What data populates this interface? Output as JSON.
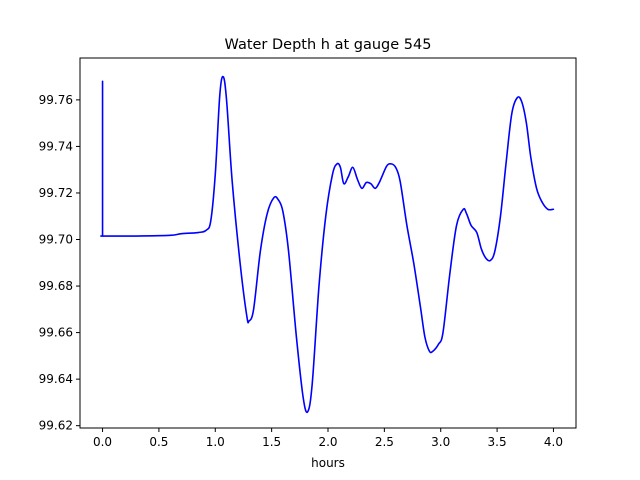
{
  "chart_data": {
    "type": "line",
    "title": "Water Depth h at gauge 545",
    "xlabel": "hours",
    "ylabel": "",
    "xlim": [
      -0.2,
      4.2
    ],
    "ylim": [
      99.619,
      99.778
    ],
    "xticks": [
      0.0,
      0.5,
      1.0,
      1.5,
      2.0,
      2.5,
      3.0,
      3.5,
      4.0
    ],
    "xtick_labels": [
      "0.0",
      "0.5",
      "1.0",
      "1.5",
      "2.0",
      "2.5",
      "3.0",
      "3.5",
      "4.0"
    ],
    "yticks": [
      99.62,
      99.64,
      99.66,
      99.68,
      99.7,
      99.72,
      99.74,
      99.76
    ],
    "ytick_labels": [
      "99.62",
      "99.64",
      "99.66",
      "99.68",
      "99.70",
      "99.72",
      "99.74",
      "99.76"
    ],
    "grid": false,
    "series": [
      {
        "color": "#0000ff",
        "x": [
          0.0,
          0.0,
          0.01,
          0.3,
          0.6,
          0.7,
          0.85,
          0.92,
          0.96,
          1.0,
          1.04,
          1.07,
          1.1,
          1.15,
          1.22,
          1.28,
          1.3,
          1.34,
          1.4,
          1.46,
          1.52,
          1.56,
          1.6,
          1.65,
          1.72,
          1.78,
          1.82,
          1.86,
          1.92,
          1.98,
          2.04,
          2.08,
          2.11,
          2.14,
          2.18,
          2.22,
          2.26,
          2.3,
          2.34,
          2.38,
          2.42,
          2.46,
          2.52,
          2.56,
          2.6,
          2.64,
          2.7,
          2.76,
          2.82,
          2.86,
          2.9,
          2.93,
          2.98,
          3.02,
          3.08,
          3.14,
          3.2,
          3.23,
          3.27,
          3.32,
          3.36,
          3.4,
          3.44,
          3.48,
          3.53,
          3.58,
          3.63,
          3.68,
          3.72,
          3.76,
          3.8,
          3.85,
          3.9,
          3.95,
          4.0
        ],
        "y": [
          99.768,
          99.7015,
          99.7015,
          99.7015,
          99.7018,
          99.7025,
          99.703,
          99.704,
          99.708,
          99.728,
          99.762,
          99.77,
          99.76,
          99.725,
          99.69,
          99.667,
          99.665,
          99.67,
          99.695,
          99.711,
          99.718,
          99.717,
          99.712,
          99.695,
          99.658,
          99.632,
          99.626,
          99.638,
          99.68,
          99.71,
          99.728,
          99.7325,
          99.731,
          99.724,
          99.727,
          99.731,
          99.726,
          99.722,
          99.7245,
          99.724,
          99.722,
          99.725,
          99.7315,
          99.7325,
          99.731,
          99.725,
          99.706,
          99.69,
          99.671,
          99.658,
          99.652,
          99.652,
          99.655,
          99.66,
          99.685,
          99.706,
          99.713,
          99.711,
          99.706,
          99.703,
          99.696,
          99.692,
          99.691,
          99.695,
          99.71,
          99.733,
          99.754,
          99.761,
          99.759,
          99.75,
          99.735,
          99.722,
          99.716,
          99.713,
          99.713
        ]
      }
    ]
  }
}
